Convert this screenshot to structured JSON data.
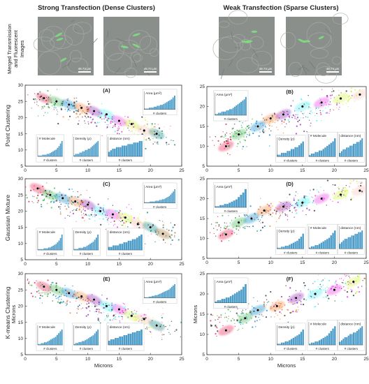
{
  "columns": [
    {
      "title": "Strong Transfection (Dense Clusters)"
    },
    {
      "title": "Weak Transfection (Sparse Clusters)"
    }
  ],
  "micro": {
    "row_label_1": "Merged Transmission",
    "row_label_2": "and Fluorescent",
    "row_label_3": "Images",
    "scale_label": "49.74 μm"
  },
  "rows": [
    {
      "label": "Point Clustering"
    },
    {
      "label": "Gaussian Mixture"
    },
    {
      "label": "K-means Clustering"
    }
  ],
  "axes": {
    "microns": "Microns",
    "clusters": "# clusters"
  },
  "colors": {
    "bar": "#4b9cc8",
    "centroid": "#000000"
  },
  "chart_data": [
    {
      "type": "scatter",
      "panel": "(A)",
      "method": "Point Clustering",
      "dataset": "Strong Transfection",
      "xlabel": "",
      "ylabel": "",
      "xlim": [
        0,
        25
      ],
      "ylim": [
        5,
        30
      ],
      "xticks": [
        0,
        5,
        10,
        15,
        20,
        25
      ],
      "yticks": [
        5,
        10,
        15,
        20,
        25,
        30
      ],
      "trend": {
        "from": [
          1,
          26
        ],
        "to": [
          23,
          13
        ],
        "spread": 2.2,
        "points": 320
      },
      "centroids": [
        [
          3,
          26
        ],
        [
          5,
          25
        ],
        [
          7,
          24
        ],
        [
          9,
          23
        ],
        [
          11,
          22
        ],
        [
          13,
          21
        ],
        [
          15,
          19
        ],
        [
          17,
          18
        ],
        [
          19,
          16
        ],
        [
          21,
          15
        ]
      ],
      "insets": [
        {
          "title": "Area (μm²)",
          "xlabel": "# clusters",
          "values": [
            1,
            1,
            1,
            2,
            2,
            2,
            3,
            3,
            4,
            4,
            5,
            5,
            6,
            7,
            8,
            9,
            10,
            11,
            13,
            15
          ]
        },
        {
          "title": "# Molecule",
          "xlabel": "# clusters",
          "values": [
            1,
            1,
            1,
            2,
            2,
            2,
            3,
            3,
            4,
            5,
            6,
            7,
            8,
            10,
            12,
            15,
            18
          ]
        },
        {
          "title": "Density (ρ)",
          "xlabel": "# clusters",
          "values": [
            1,
            2,
            2,
            2,
            3,
            3,
            4,
            4,
            5,
            5,
            6,
            6,
            7,
            8,
            9,
            10,
            11,
            12
          ]
        },
        {
          "title": "distance (nm)",
          "xlabel": "# clusters",
          "values": [
            3,
            4,
            5,
            5,
            6,
            6,
            6,
            7,
            7,
            7,
            8,
            8,
            8,
            9,
            9,
            9,
            10,
            10
          ]
        }
      ]
    },
    {
      "type": "scatter",
      "panel": "(B)",
      "method": "Point Clustering",
      "dataset": "Weak Transfection",
      "xlabel": "",
      "ylabel": "",
      "xlim": [
        0,
        25
      ],
      "ylim": [
        5,
        25
      ],
      "xticks": [
        0,
        5,
        10,
        15,
        20,
        25
      ],
      "yticks": [
        5,
        10,
        15,
        20,
        25
      ],
      "trend": {
        "from": [
          2,
          11
        ],
        "to": [
          25,
          24
        ],
        "spread": 2.0,
        "points": 300
      },
      "centroids": [
        [
          3,
          10
        ],
        [
          5,
          13
        ],
        [
          8,
          15
        ],
        [
          10,
          17
        ],
        [
          12,
          18
        ],
        [
          15,
          20
        ],
        [
          18,
          21
        ],
        [
          21,
          22
        ],
        [
          24,
          23
        ]
      ],
      "insets": [
        {
          "title": "Area (μm²)",
          "xlabel": "# clusters",
          "values": [
            1,
            1,
            2,
            2,
            3,
            3,
            3,
            4,
            4,
            5,
            5,
            6,
            7,
            8,
            9,
            10,
            11,
            12,
            13,
            15
          ]
        },
        {
          "title": "Density (ρ)",
          "xlabel": "# clusters",
          "values": [
            1,
            1,
            2,
            2,
            2,
            3,
            3,
            4,
            4,
            5,
            5,
            6,
            7,
            8
          ]
        },
        {
          "title": "# Molecule",
          "xlabel": "# clusters",
          "values": [
            1,
            2,
            2,
            3,
            3,
            4,
            4,
            5,
            6,
            7,
            8,
            9,
            10,
            12
          ]
        },
        {
          "title": "distance (nm)",
          "xlabel": "# clusters",
          "values": [
            2,
            3,
            4,
            4,
            5,
            5,
            6,
            6,
            7,
            7,
            8,
            8,
            9,
            10
          ]
        }
      ]
    },
    {
      "type": "scatter",
      "panel": "(C)",
      "method": "Gaussian Mixture",
      "dataset": "Strong Transfection",
      "xlabel": "",
      "ylabel": "",
      "xlim": [
        0,
        25
      ],
      "ylim": [
        5,
        30
      ],
      "xticks": [
        0,
        5,
        10,
        15,
        20,
        25
      ],
      "yticks": [
        5,
        10,
        15,
        20,
        25,
        30
      ],
      "trend": {
        "from": [
          1,
          26
        ],
        "to": [
          24,
          12
        ],
        "spread": 2.4,
        "points": 320
      },
      "centroids": [
        [
          2,
          27
        ],
        [
          4,
          25
        ],
        [
          6,
          24
        ],
        [
          8,
          23
        ],
        [
          10,
          22
        ],
        [
          12,
          20
        ],
        [
          14,
          19
        ],
        [
          16,
          18
        ],
        [
          18,
          16
        ],
        [
          20,
          15
        ],
        [
          22,
          13
        ]
      ],
      "insets": [
        {
          "title": "Area (μm²)",
          "xlabel": "# clusters",
          "values": [
            1,
            1,
            1,
            1,
            2,
            2,
            2,
            2,
            3,
            3,
            3,
            4,
            4,
            5,
            5,
            6,
            7,
            8,
            9,
            11,
            13,
            15,
            18
          ]
        },
        {
          "title": "# Molecule",
          "xlabel": "# clusters",
          "values": [
            1,
            1,
            1,
            1,
            2,
            2,
            2,
            3,
            3,
            4,
            5,
            6,
            7,
            9,
            11,
            14,
            18
          ]
        },
        {
          "title": "Density (ρ)",
          "xlabel": "# clusters",
          "values": [
            1,
            1,
            1,
            2,
            2,
            2,
            3,
            3,
            4,
            5,
            6,
            7,
            8,
            10,
            12,
            15
          ]
        },
        {
          "title": "distance (nm)",
          "xlabel": "# clusters",
          "values": [
            2,
            2,
            3,
            3,
            3,
            4,
            4,
            5,
            5,
            6,
            6,
            7,
            7,
            8,
            9,
            10
          ]
        }
      ]
    },
    {
      "type": "scatter",
      "panel": "(D)",
      "method": "Gaussian Mixture",
      "dataset": "Weak Transfection",
      "xlabel": "",
      "ylabel": "",
      "xlim": [
        0,
        25
      ],
      "ylim": [
        5,
        25
      ],
      "xticks": [
        0,
        5,
        10,
        15,
        20,
        25
      ],
      "yticks": [
        5,
        10,
        15,
        20,
        25
      ],
      "trend": {
        "from": [
          1,
          12
        ],
        "to": [
          25,
          24
        ],
        "spread": 2.0,
        "points": 300
      },
      "centroids": [
        [
          3,
          11
        ],
        [
          5,
          14
        ],
        [
          7,
          15
        ],
        [
          9,
          17
        ],
        [
          12,
          18
        ],
        [
          15,
          19
        ],
        [
          18,
          20
        ],
        [
          21,
          21
        ],
        [
          24,
          22
        ]
      ],
      "insets": [
        {
          "title": "Area (μm²)",
          "xlabel": "# clusters",
          "values": [
            1,
            1,
            2,
            2,
            3,
            3,
            4,
            5,
            6,
            7,
            9,
            11,
            13,
            16
          ]
        },
        {
          "title": "Density (ρ)",
          "xlabel": "# clusters",
          "values": [
            1,
            1,
            2,
            2,
            3,
            3,
            4,
            5,
            6,
            7,
            8,
            10,
            12,
            15
          ]
        },
        {
          "title": "# Molecule",
          "xlabel": "# clusters",
          "values": [
            1,
            2,
            2,
            3,
            3,
            4,
            5,
            6,
            7,
            8,
            9,
            11,
            13,
            15
          ]
        },
        {
          "title": "distance (nm)",
          "xlabel": "# clusters",
          "values": [
            3,
            4,
            5,
            6,
            6,
            7,
            7,
            8,
            8,
            9,
            9,
            10,
            10,
            11
          ]
        }
      ]
    },
    {
      "type": "scatter",
      "panel": "(E)",
      "method": "K-means Clustering",
      "dataset": "Strong Transfection",
      "xlabel": "Microns",
      "ylabel": "Microns",
      "xlim": [
        0,
        25
      ],
      "ylim": [
        5,
        30
      ],
      "xticks": [
        0,
        5,
        10,
        15,
        20,
        25
      ],
      "yticks": [
        5,
        10,
        15,
        20,
        25,
        30
      ],
      "trend": {
        "from": [
          1,
          26
        ],
        "to": [
          24,
          12
        ],
        "spread": 2.3,
        "points": 320
      },
      "centroids": [
        [
          3,
          26
        ],
        [
          5,
          25
        ],
        [
          7,
          24
        ],
        [
          9,
          23
        ],
        [
          11,
          22
        ],
        [
          13,
          20
        ],
        [
          15,
          19
        ],
        [
          17,
          17
        ],
        [
          19,
          16
        ],
        [
          21,
          14
        ]
      ],
      "insets": [
        {
          "title": "Area (μm²)",
          "xlabel": "# clusters",
          "values": [
            1,
            1,
            1,
            2,
            2,
            3,
            3,
            4,
            4,
            5,
            6,
            7,
            8,
            9,
            10,
            11,
            12,
            14,
            16,
            18,
            20
          ]
        },
        {
          "title": "# Molecule",
          "xlabel": "# clusters",
          "values": [
            1,
            1,
            2,
            2,
            3,
            3,
            4,
            5,
            6,
            7,
            8,
            9,
            11,
            13,
            15,
            17
          ]
        },
        {
          "title": "Density (ρ)",
          "xlabel": "# clusters",
          "values": [
            1,
            2,
            2,
            3,
            3,
            4,
            4,
            5,
            6,
            7,
            8,
            9,
            10,
            12,
            14,
            16
          ]
        },
        {
          "title": "distance (nm)",
          "xlabel": "# clusters",
          "values": [
            3,
            4,
            4,
            5,
            5,
            6,
            6,
            7,
            7,
            8,
            8,
            9,
            9,
            10,
            10,
            11
          ]
        }
      ]
    },
    {
      "type": "scatter",
      "panel": "(F)",
      "method": "K-means Clustering",
      "dataset": "Weak Transfection",
      "xlabel": "Microns",
      "ylabel": "Microns",
      "xlim": [
        0,
        25
      ],
      "ylim": [
        5,
        25
      ],
      "xticks": [
        0,
        5,
        10,
        15,
        20,
        25
      ],
      "yticks": [
        5,
        10,
        15,
        20,
        25
      ],
      "trend": {
        "from": [
          1,
          12
        ],
        "to": [
          25,
          24
        ],
        "spread": 2.0,
        "points": 300
      },
      "centroids": [
        [
          3,
          11
        ],
        [
          6,
          14
        ],
        [
          8,
          16
        ],
        [
          11,
          17
        ],
        [
          14,
          19
        ],
        [
          17,
          20
        ],
        [
          20,
          21
        ],
        [
          23,
          23
        ]
      ],
      "insets": [
        {
          "title": "Area (μm²)",
          "xlabel": "# clusters",
          "values": [
            1,
            2,
            2,
            3,
            3,
            4,
            4,
            5,
            6,
            7,
            8,
            9,
            10,
            12,
            14
          ]
        },
        {
          "title": "Density (ρ)",
          "xlabel": "# clusters",
          "values": [
            1,
            1,
            2,
            2,
            3,
            3,
            4,
            5,
            6,
            7,
            8,
            9,
            11,
            13
          ]
        },
        {
          "title": "# Molecule",
          "xlabel": "# clusters",
          "values": [
            1,
            2,
            2,
            3,
            3,
            4,
            5,
            6,
            7,
            8,
            10,
            12,
            14,
            16
          ]
        },
        {
          "title": "distance (nm)",
          "xlabel": "# clusters",
          "values": [
            2,
            3,
            4,
            5,
            5,
            6,
            7,
            7,
            8,
            8,
            9,
            10,
            11,
            12
          ]
        }
      ]
    }
  ]
}
